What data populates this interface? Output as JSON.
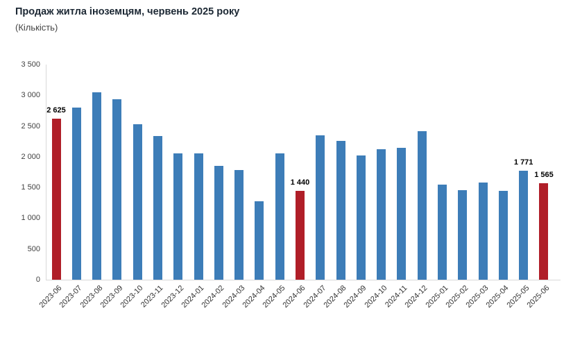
{
  "header": {
    "title": "Продаж житла іноземцям, червень 2025 року",
    "subtitle": "(Кількість)"
  },
  "chart_data": {
    "type": "bar",
    "title": "Продаж житла іноземцям, червень 2025 року",
    "subtitle": "(Кількість)",
    "xlabel": "",
    "ylabel": "(Кількість)",
    "ylim": [
      0,
      3500
    ],
    "grid": false,
    "legend": false,
    "categories": [
      "2023-06",
      "2023-07",
      "2023-08",
      "2023-09",
      "2023-10",
      "2023-11",
      "2023-12",
      "2024-01",
      "2024-02",
      "2024-03",
      "2024-04",
      "2024-05",
      "2024-06",
      "2024-07",
      "2024-08",
      "2024-09",
      "2024-10",
      "2024-11",
      "2024-12",
      "2025-01",
      "2025-02",
      "2025-03",
      "2025-04",
      "2025-05",
      "2025-06"
    ],
    "values": [
      2625,
      2800,
      3050,
      2930,
      2530,
      2340,
      2060,
      2060,
      1850,
      1780,
      1280,
      2060,
      1440,
      2350,
      2260,
      2020,
      2120,
      2150,
      2420,
      1550,
      1460,
      1580,
      1445,
      1771,
      1565
    ],
    "data_labels": [
      "2 625",
      "",
      "",
      "",
      "",
      "",
      "",
      "",
      "",
      "",
      "",
      "",
      "1 440",
      "",
      "",
      "",
      "",
      "",
      "",
      "",
      "",
      "",
      "",
      "1 771",
      "1 565"
    ],
    "highlight_indices": [
      0,
      12,
      24
    ],
    "yticks": [
      0,
      500,
      1000,
      1500,
      2000,
      2500,
      3000,
      3500
    ],
    "ytick_labels": [
      "0",
      "500",
      "1 000",
      "1 500",
      "2 000",
      "2 500",
      "3 000",
      "3 500"
    ],
    "colors": {
      "bar": "#3D7DB8",
      "bar_highlight": "#B01E28",
      "axis_line": "#D9D9D9",
      "tick_text": "#404040",
      "xtick_text": "#333333",
      "label_text": "#000000",
      "title_text": "#1B2733",
      "subtitle_text": "#444444"
    }
  }
}
